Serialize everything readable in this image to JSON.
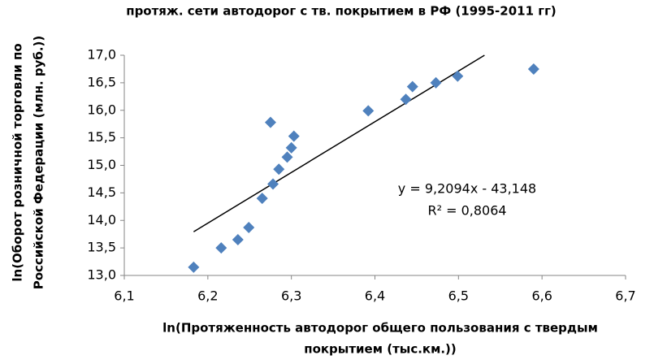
{
  "chart_data": {
    "type": "scatter",
    "title": "протяж. сети автодорог с тв. покрытием в РФ (1995-2011 гг)",
    "x_label": [
      "ln(Протяженность автодорог общего пользования с твердым",
      "покрытием (тыс.км.))"
    ],
    "y_label": [
      "ln(Оборот розничной торговли по",
      "Российской  Федерации (млн. руб.))"
    ],
    "series": [
      {
        "color": "#4f81bd",
        "x": [
          6.183,
          6.216,
          6.236,
          6.249,
          6.265,
          6.278,
          6.285,
          6.295,
          6.3,
          6.303,
          6.275,
          6.392,
          6.437,
          6.445,
          6.473,
          6.499,
          6.59
        ],
        "values": [
          13.15,
          13.5,
          13.65,
          13.87,
          14.4,
          14.66,
          14.93,
          15.15,
          15.32,
          15.53,
          15.78,
          15.99,
          16.2,
          16.43,
          16.5,
          16.62,
          16.75
        ]
      }
    ],
    "trendline": {
      "slope": 9.2094,
      "intercept": -43.148,
      "color": "#000000",
      "equation": "y = 9,2094x - 43,148",
      "r2_label": "R² = 0,8064"
    },
    "xlim": [
      6.1,
      6.7
    ],
    "xticks": [
      {
        "value": 6.1,
        "label": "6,1"
      },
      {
        "value": 6.2,
        "label": "6,2"
      },
      {
        "value": 6.3,
        "label": "6,3"
      },
      {
        "value": 6.4,
        "label": "6,4"
      },
      {
        "value": 6.5,
        "label": "6,5"
      },
      {
        "value": 6.6,
        "label": "6,6"
      },
      {
        "value": 6.7,
        "label": "6,7"
      }
    ],
    "ylim": [
      13,
      17
    ],
    "yticks": [
      {
        "value": 13,
        "label": "13,0"
      },
      {
        "value": 13.5,
        "label": "13,5"
      },
      {
        "value": 14,
        "label": "14,0"
      },
      {
        "value": 14.5,
        "label": "14,5"
      },
      {
        "value": 15,
        "label": "15,0"
      },
      {
        "value": 15.5,
        "label": "15,5"
      },
      {
        "value": 16,
        "label": "16,0"
      },
      {
        "value": 16.5,
        "label": "16,5"
      },
      {
        "value": 17,
        "label": "17,0"
      }
    ],
    "grid": false
  }
}
